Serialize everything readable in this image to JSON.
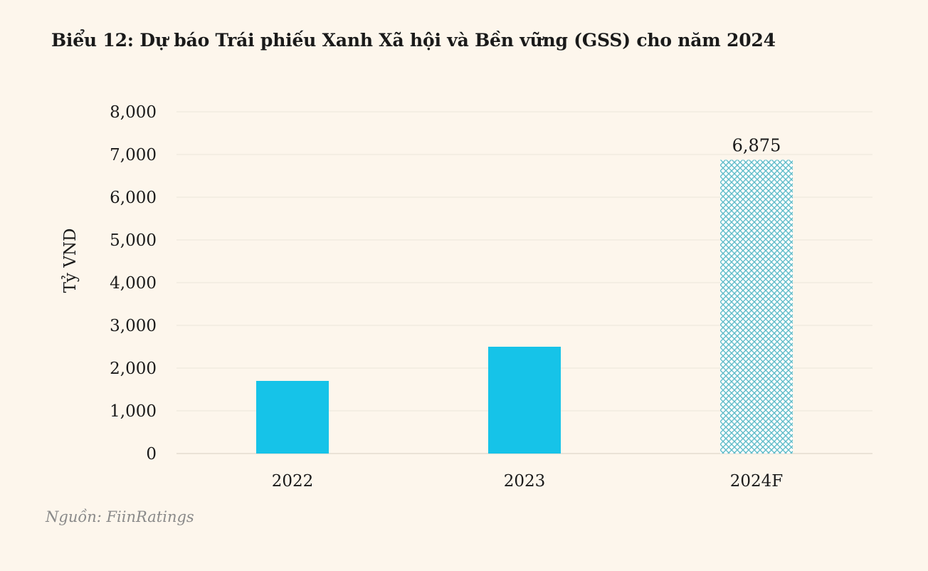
{
  "title": "Biểu 12: Dự báo Trái phiếu Xanh Xã hội và Bền vững (GSS) cho năm 2024",
  "source": "Nguồn: FiinRatings",
  "colors": {
    "bar": "#16c3e8",
    "forecast_pattern": "#5fbcc9",
    "background": "#fdf6ec",
    "grid": "#ece5da"
  },
  "chart_data": {
    "type": "bar",
    "title": "Biểu 12: Dự báo Trái phiếu Xanh Xã hội và Bền vững (GSS) cho năm 2024",
    "categories": [
      "2022",
      "2023",
      "2024F"
    ],
    "values": [
      1700,
      2500,
      6875
    ],
    "styles": [
      "solid",
      "solid",
      "pattern"
    ],
    "data_labels": [
      "",
      "",
      "6,875"
    ],
    "xlabel": "",
    "ylabel": "Tỷ VND",
    "ylim": [
      0,
      8000
    ],
    "yticks": [
      0,
      1000,
      2000,
      3000,
      4000,
      5000,
      6000,
      7000,
      8000
    ],
    "ytick_labels": [
      "0",
      "1,000",
      "2,000",
      "3,000",
      "4,000",
      "5,000",
      "6,000",
      "7,000",
      "8,000"
    ],
    "grid": true,
    "legend": "none"
  }
}
